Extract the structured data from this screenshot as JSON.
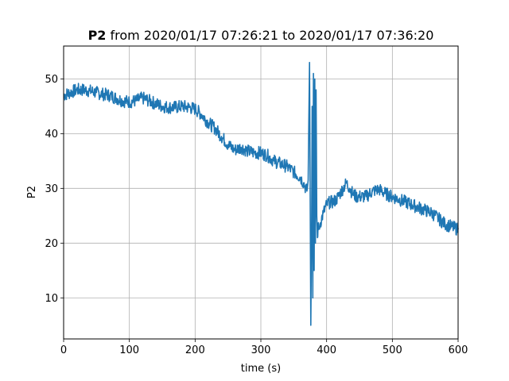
{
  "chart_data": {
    "type": "line",
    "title": {
      "bold_part": "P2",
      "rest": " from 2020/01/17 07:26:21 to 2020/01/17 07:36:20"
    },
    "xlabel": "time (s)",
    "ylabel": "P2",
    "xlim": [
      0,
      600
    ],
    "ylim": [
      2.5,
      56
    ],
    "xticks": [
      0,
      100,
      200,
      300,
      400,
      500,
      600
    ],
    "yticks": [
      10,
      20,
      30,
      40,
      50
    ],
    "grid": true,
    "color": "#1f77b4",
    "series": [
      {
        "x": [
          0,
          10,
          20,
          30,
          40,
          50,
          60,
          70,
          80,
          90,
          100,
          110,
          120,
          130,
          140,
          150,
          160,
          170,
          180,
          190,
          200,
          210,
          220,
          230,
          240,
          250,
          260,
          270,
          280,
          290,
          300,
          310,
          320,
          330,
          340,
          350,
          360,
          365,
          370,
          372,
          374,
          376,
          377,
          378,
          379,
          380,
          381,
          382,
          383,
          384,
          385,
          386,
          387,
          388,
          390,
          395,
          400,
          405,
          410,
          415,
          420,
          425,
          430,
          435,
          440,
          445,
          450,
          460,
          470,
          480,
          490,
          500,
          510,
          520,
          530,
          540,
          550,
          560,
          570,
          580,
          590,
          600
        ],
        "y": [
          47.0,
          47.5,
          48.0,
          48.0,
          47.8,
          47.5,
          47.2,
          47.0,
          46.5,
          46.0,
          45.8,
          46.0,
          46.5,
          46.0,
          45.5,
          45.0,
          44.8,
          44.8,
          45.0,
          44.8,
          44.5,
          43.5,
          42.0,
          41.0,
          39.5,
          38.0,
          37.0,
          37.5,
          36.8,
          36.5,
          36.5,
          36.0,
          35.0,
          34.5,
          34.0,
          33.0,
          32.0,
          31.0,
          29.5,
          31.5,
          53.0,
          5.0,
          20.0,
          45.0,
          10.0,
          51.0,
          15.0,
          50.0,
          20.0,
          48.0,
          25.0,
          21.0,
          23.0,
          22.5,
          23.5,
          25.5,
          27.0,
          27.5,
          27.5,
          28.0,
          29.0,
          30.0,
          31.0,
          30.0,
          29.0,
          28.5,
          28.5,
          28.5,
          29.5,
          29.8,
          29.0,
          28.5,
          28.0,
          27.5,
          27.0,
          26.5,
          26.0,
          25.5,
          24.5,
          23.5,
          23.0,
          22.5
        ]
      }
    ]
  }
}
